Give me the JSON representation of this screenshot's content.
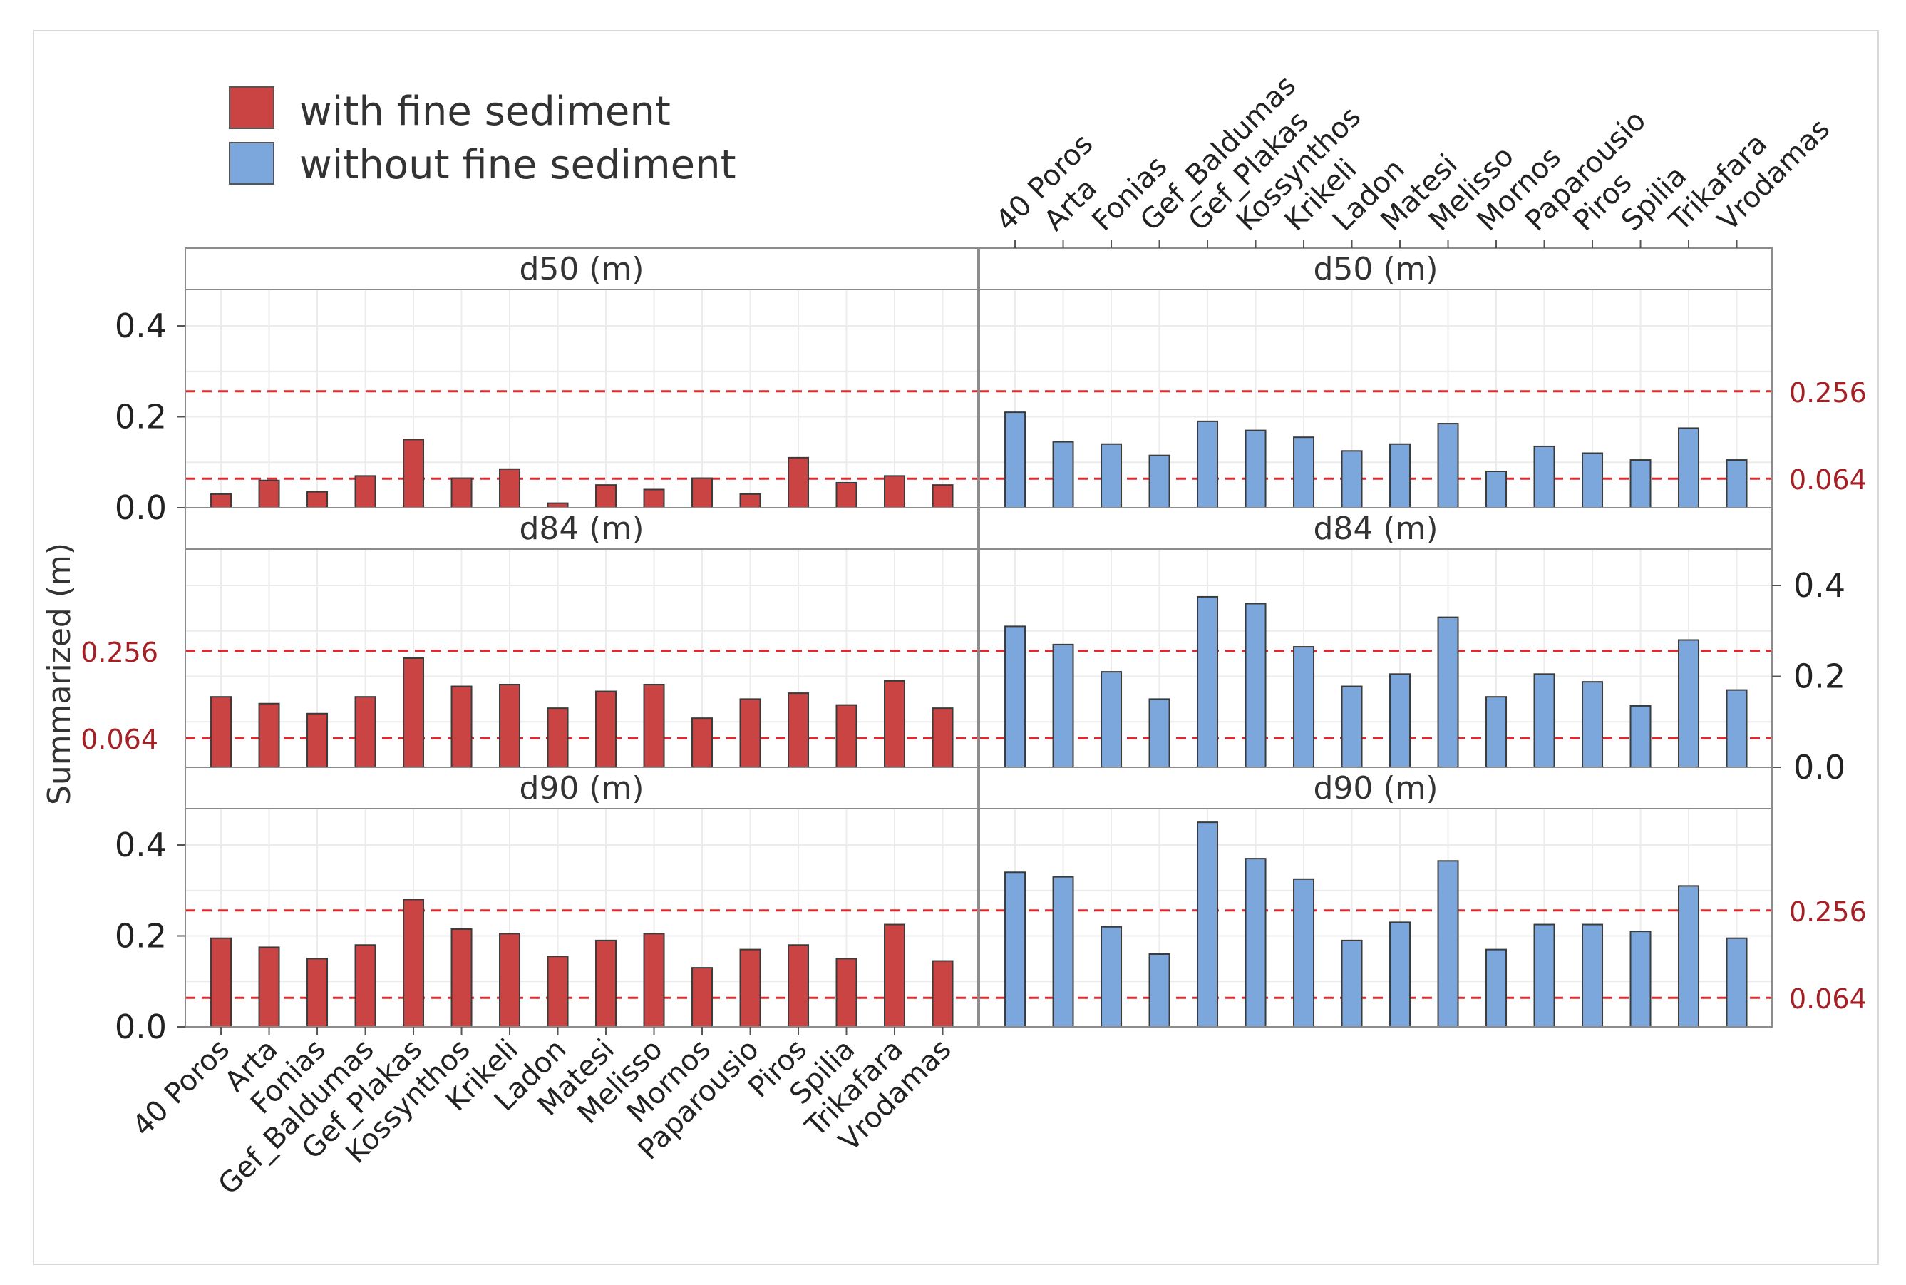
{
  "legend": {
    "items": [
      {
        "label": "with fine sediment",
        "color": "#c94443"
      },
      {
        "label": "without fine sediment",
        "color": "#7ba7dd"
      }
    ]
  },
  "y_axis_label": "Summarized (m)",
  "reference_lines": {
    "values": [
      0.256,
      0.064
    ],
    "labels": [
      "0.256",
      "0.064"
    ],
    "color": "#e0282e"
  },
  "chart_data": {
    "type": "bar",
    "layout": "faceted grid: 3 rows (d50, d84, d90) x 2 columns (with / without fine sediment)",
    "categories": [
      "40 Poros",
      "Arta",
      "Fonias",
      "Gef_Baldumas",
      "Gef_Plakas",
      "Kossynthos",
      "Krikeli",
      "Ladon",
      "Matesi",
      "Melisso",
      "Mornos",
      "Paparousio",
      "Piros",
      "Spilia",
      "Trikafara",
      "Vrodamas"
    ],
    "ylim": [
      0,
      0.48
    ],
    "yticks": [
      "0.0",
      "0.2",
      "0.4"
    ],
    "grid": true,
    "legend_position": "top-left",
    "series": [
      {
        "name": "with fine sediment",
        "color": "#c94443",
        "panels": [
          {
            "title": "d50 (m)",
            "values": [
              0.03,
              0.06,
              0.035,
              0.07,
              0.15,
              0.065,
              0.085,
              0.01,
              0.05,
              0.04,
              0.065,
              0.03,
              0.11,
              0.055,
              0.07,
              0.05
            ]
          },
          {
            "title": "d84 (m)",
            "values": [
              0.155,
              0.14,
              0.118,
              0.155,
              0.24,
              0.178,
              0.182,
              0.13,
              0.167,
              0.182,
              0.108,
              0.15,
              0.163,
              0.137,
              0.19,
              0.13
            ]
          },
          {
            "title": "d90 (m)",
            "values": [
              0.195,
              0.175,
              0.15,
              0.18,
              0.28,
              0.215,
              0.205,
              0.155,
              0.19,
              0.205,
              0.13,
              0.17,
              0.18,
              0.15,
              0.225,
              0.145
            ]
          }
        ]
      },
      {
        "name": "without fine sediment",
        "color": "#7ba7dd",
        "panels": [
          {
            "title": "d50 (m)",
            "values": [
              0.21,
              0.145,
              0.14,
              0.115,
              0.19,
              0.17,
              0.155,
              0.125,
              0.14,
              0.185,
              0.08,
              0.135,
              0.12,
              0.105,
              0.175,
              0.105
            ]
          },
          {
            "title": "d84 (m)",
            "values": [
              0.31,
              0.27,
              0.21,
              0.15,
              0.375,
              0.36,
              0.265,
              0.178,
              0.205,
              0.33,
              0.155,
              0.205,
              0.188,
              0.135,
              0.28,
              0.17
            ]
          },
          {
            "title": "d90 (m)",
            "values": [
              0.34,
              0.33,
              0.22,
              0.16,
              0.45,
              0.37,
              0.325,
              0.19,
              0.23,
              0.365,
              0.17,
              0.225,
              0.225,
              0.21,
              0.31,
              0.195
            ]
          }
        ]
      }
    ]
  }
}
